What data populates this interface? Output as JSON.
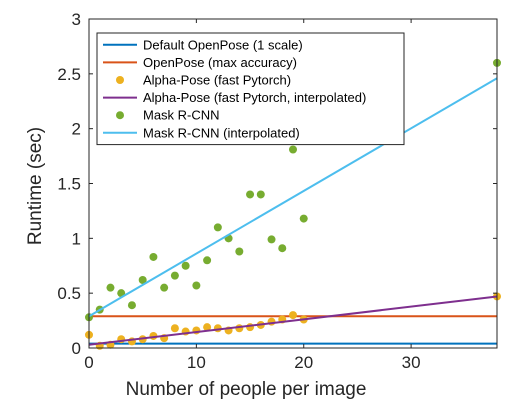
{
  "chart_data": {
    "type": "scatter",
    "xlabel": "Number of people per image",
    "ylabel": "Runtime (sec)",
    "xlim": [
      0,
      38
    ],
    "ylim": [
      0,
      3
    ],
    "xticks": [
      0,
      10,
      20,
      30
    ],
    "yticks": [
      0,
      0.5,
      1,
      1.5,
      2,
      2.5,
      3
    ],
    "grid": false,
    "legend_position": "top-left",
    "series": [
      {
        "name": "Default OpenPose (1 scale)",
        "kind": "line",
        "color": "#0072BD",
        "x": [
          0,
          38
        ],
        "y": [
          0.04,
          0.04
        ]
      },
      {
        "name": "OpenPose (max accuracy)",
        "kind": "line",
        "color": "#D95319",
        "x": [
          0,
          38
        ],
        "y": [
          0.29,
          0.29
        ]
      },
      {
        "name": "Alpha-Pose (fast Pytorch)",
        "kind": "scatter",
        "color": "#EDB120",
        "x": [
          0,
          1,
          2,
          3,
          4,
          5,
          6,
          7,
          8,
          9,
          10,
          11,
          12,
          13,
          14,
          15,
          16,
          17,
          18,
          19,
          20,
          38
        ],
        "y": [
          0.12,
          0.02,
          0.03,
          0.08,
          0.06,
          0.08,
          0.11,
          0.09,
          0.18,
          0.15,
          0.16,
          0.19,
          0.18,
          0.16,
          0.18,
          0.19,
          0.21,
          0.24,
          0.26,
          0.3,
          0.26,
          0.47
        ]
      },
      {
        "name": "Alpha-Pose (fast Pytorch, interpolated)",
        "kind": "line",
        "color": "#7E2F8E",
        "x": [
          0,
          38
        ],
        "y": [
          0.03,
          0.47
        ]
      },
      {
        "name": "Mask R-CNN",
        "kind": "scatter",
        "color": "#77AC30",
        "x": [
          0,
          1,
          2,
          3,
          4,
          5,
          6,
          7,
          8,
          9,
          10,
          11,
          12,
          13,
          14,
          15,
          16,
          17,
          18,
          19,
          20,
          38
        ],
        "y": [
          0.28,
          0.35,
          0.55,
          0.5,
          0.39,
          0.62,
          0.83,
          0.55,
          0.66,
          0.75,
          0.57,
          0.8,
          1.1,
          1.0,
          0.88,
          1.4,
          1.4,
          0.99,
          0.91,
          1.81,
          1.18,
          2.6
        ]
      },
      {
        "name": "Mask R-CNN (interpolated)",
        "kind": "line",
        "color": "#4DBEEE",
        "x": [
          0,
          38
        ],
        "y": [
          0.29,
          2.46
        ]
      }
    ]
  }
}
